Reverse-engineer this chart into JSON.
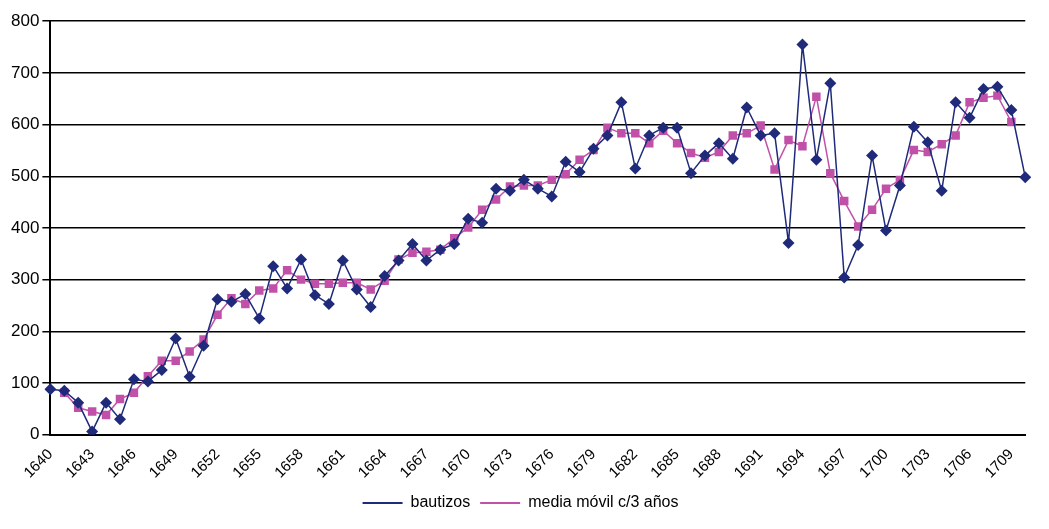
{
  "chart_data": {
    "type": "line",
    "categories": [
      "1640",
      null,
      null,
      "1643",
      null,
      null,
      "1646",
      null,
      null,
      "1649",
      null,
      null,
      "1652",
      null,
      null,
      "1655",
      null,
      null,
      "1658",
      null,
      null,
      "1661",
      null,
      null,
      "1664",
      null,
      null,
      "1667",
      null,
      null,
      "1670",
      null,
      null,
      "1673",
      null,
      null,
      "1676",
      null,
      null,
      "1679",
      null,
      null,
      "1682",
      null,
      null,
      "1685",
      null,
      null,
      "1688",
      null,
      null,
      "1691",
      null,
      null,
      "1694",
      null,
      null,
      "1697",
      null,
      null,
      "1700",
      null,
      null,
      "1703",
      null,
      null,
      "1706",
      null,
      null,
      "1709",
      null
    ],
    "series": [
      {
        "name": "bautizos",
        "color": "#1f2a7a",
        "marker": "diamond",
        "values": [
          88,
          85,
          62,
          6,
          62,
          30,
          107,
          103,
          125,
          186,
          112,
          172,
          262,
          257,
          272,
          225,
          326,
          283,
          339,
          270,
          253,
          337,
          281,
          247,
          307,
          337,
          369,
          337,
          358,
          369,
          418,
          410,
          476,
          472,
          493,
          476,
          461,
          528,
          508,
          553,
          579,
          643,
          515,
          579,
          594,
          594,
          506,
          540,
          564,
          534,
          633,
          579,
          583,
          371,
          755,
          532,
          680,
          304,
          367,
          540,
          395,
          482,
          596,
          566,
          472,
          643,
          613,
          669,
          673,
          628,
          498
        ]
      },
      {
        "name": "media móvil c/3 años",
        "color": "#c050a8",
        "marker": "square",
        "values": [
          null,
          81,
          52,
          45,
          38,
          69,
          81,
          113,
          143,
          143,
          161,
          184,
          232,
          264,
          253,
          279,
          283,
          318,
          300,
          292,
          292,
          294,
          294,
          281,
          298,
          339,
          352,
          354,
          358,
          380,
          401,
          435,
          455,
          480,
          482,
          482,
          493,
          504,
          532,
          551,
          594,
          583,
          583,
          564,
          588,
          564,
          545,
          536,
          547,
          579,
          583,
          598,
          513,
          570,
          558,
          654,
          506,
          452,
          403,
          435,
          476,
          493,
          551,
          547,
          562,
          579,
          643,
          652,
          656,
          605,
          null
        ]
      }
    ],
    "ylim": [
      0,
      800
    ],
    "yticks": [
      0,
      100,
      200,
      300,
      400,
      500,
      600,
      700,
      800
    ],
    "grid": "y",
    "legend": "bottom",
    "line_style": "solid"
  }
}
